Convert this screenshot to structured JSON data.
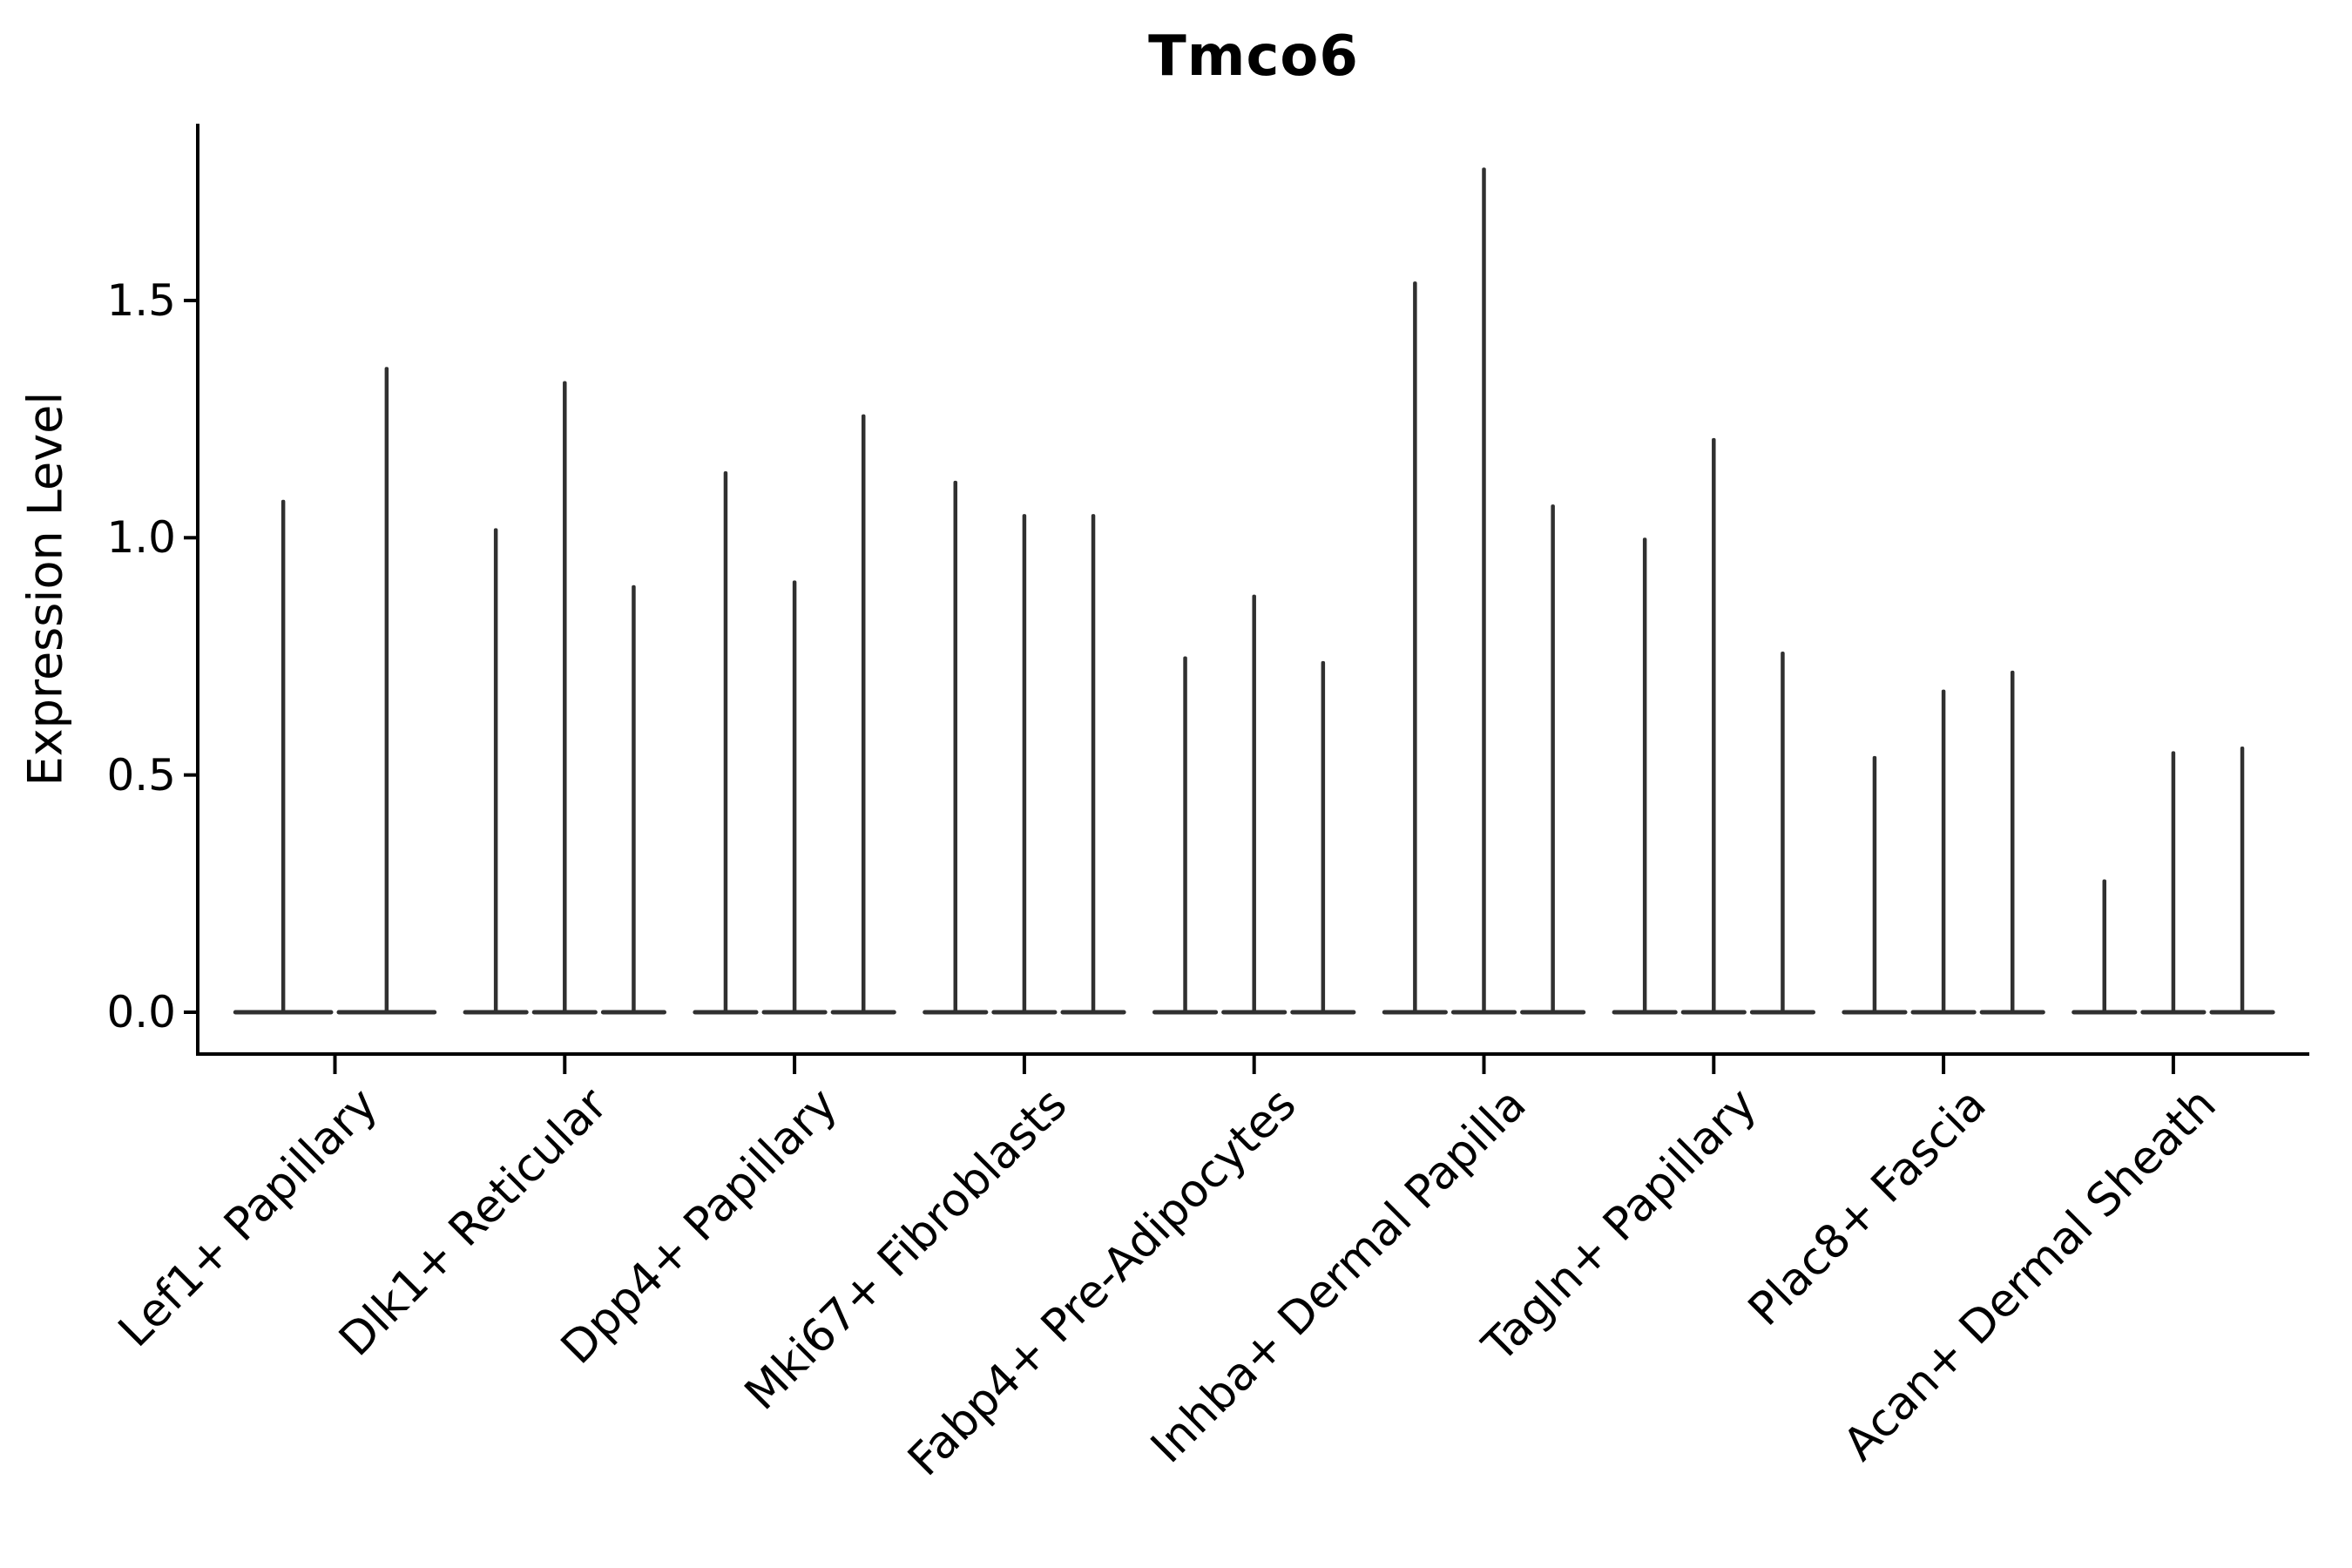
{
  "title": "Tmco6",
  "chart_data": {
    "type": "violin",
    "title": "Tmco6",
    "xlabel": "",
    "ylabel": "Expression Level",
    "ylim": [
      -0.09,
      1.87
    ],
    "ytick_values": [
      0.0,
      0.5,
      1.0,
      1.5
    ],
    "ytick_labels": [
      "0.0",
      "0.5",
      "1.0",
      "1.5"
    ],
    "grid": false,
    "legend": "none",
    "violin_color": "#303030",
    "axis_color": "#000000",
    "background_color": "#ffffff",
    "x_label_rotation_degrees": 45,
    "categories": [
      "Lef1+ Papillary",
      "Dlk1+ Reticular",
      "Dpp4+ Papillary",
      "Mki67+ Fibroblasts",
      "Fabp4+ Pre-Adipocytes",
      "Inhba+ Dermal Papilla",
      "Tagln+ Papillary",
      "Plac8+ Fascia",
      "Acan+ Dermal Sheath"
    ],
    "groups": [
      {
        "label": "Lef1+ Papillary",
        "violin_peaks": [
          1.08,
          1.36
        ]
      },
      {
        "label": "Dlk1+ Reticular",
        "violin_peaks": [
          1.02,
          1.33,
          0.9
        ]
      },
      {
        "label": "Dpp4+ Papillary",
        "violin_peaks": [
          1.14,
          0.91,
          1.26
        ]
      },
      {
        "label": "Mki67+ Fibroblasts",
        "violin_peaks": [
          1.12,
          1.05,
          1.05
        ]
      },
      {
        "label": "Fabp4+ Pre-Adipocytes",
        "violin_peaks": [
          0.75,
          0.88,
          0.74
        ]
      },
      {
        "label": "Inhba+ Dermal Papilla",
        "violin_peaks": [
          1.54,
          1.78,
          1.07
        ]
      },
      {
        "label": "Tagln+ Papillary",
        "violin_peaks": [
          1.0,
          1.21,
          0.76
        ]
      },
      {
        "label": "Plac8+ Fascia",
        "violin_peaks": [
          0.54,
          0.68,
          0.72
        ]
      },
      {
        "label": "Acan+ Dermal Sheath",
        "violin_peaks": [
          0.28,
          0.55,
          0.56
        ]
      }
    ],
    "violin_shape_note": "each violin is near-zero density (flat wide base at 0) with a single thin spike up to its peak value"
  }
}
